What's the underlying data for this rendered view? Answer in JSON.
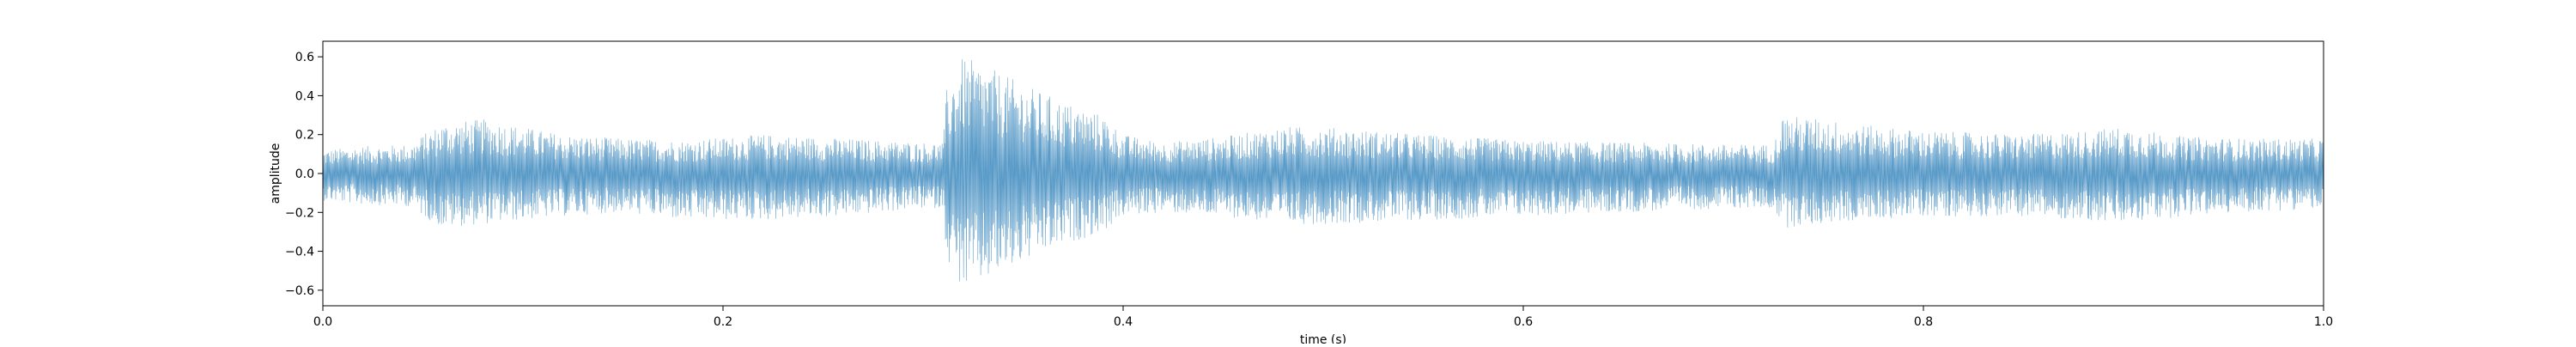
{
  "chart_data": {
    "type": "area",
    "title": "",
    "xlabel": "time (s)",
    "ylabel": "amplitude",
    "xlim": [
      0.0,
      1.0
    ],
    "ylim": [
      -0.68,
      0.68
    ],
    "xticks": [
      0.0,
      0.2,
      0.4,
      0.6,
      0.8,
      1.0
    ],
    "xtick_labels": [
      "0.0",
      "0.2",
      "0.4",
      "0.6",
      "0.8",
      "1.0"
    ],
    "yticks": [
      0.6,
      0.4,
      0.2,
      0.0,
      -0.2,
      -0.4,
      -0.6
    ],
    "ytick_labels": [
      "0.6",
      "0.4",
      "0.2",
      "0.0",
      "−0.2",
      "−0.4",
      "−0.6"
    ],
    "grid": false,
    "line_color": "#1f77b4",
    "series": [
      {
        "envelope": {
          "t": [
            0.0,
            0.02,
            0.045,
            0.05,
            0.06,
            0.08,
            0.1,
            0.12,
            0.15,
            0.18,
            0.22,
            0.26,
            0.3,
            0.31,
            0.312,
            0.32,
            0.33,
            0.35,
            0.37,
            0.39,
            0.4,
            0.42,
            0.45,
            0.48,
            0.5,
            0.55,
            0.6,
            0.65,
            0.7,
            0.725,
            0.73,
            0.75,
            0.77,
            0.8,
            0.85,
            0.88,
            0.9,
            0.93,
            0.96,
            1.0
          ],
          "pos": [
            0.12,
            0.14,
            0.15,
            0.2,
            0.26,
            0.28,
            0.24,
            0.2,
            0.18,
            0.17,
            0.2,
            0.18,
            0.16,
            0.16,
            0.45,
            0.6,
            0.56,
            0.46,
            0.37,
            0.3,
            0.2,
            0.16,
            0.19,
            0.24,
            0.24,
            0.2,
            0.17,
            0.16,
            0.15,
            0.15,
            0.3,
            0.28,
            0.25,
            0.22,
            0.2,
            0.22,
            0.24,
            0.19,
            0.18,
            0.18
          ],
          "neg": [
            -0.14,
            -0.16,
            -0.17,
            -0.22,
            -0.28,
            -0.26,
            -0.24,
            -0.22,
            -0.2,
            -0.24,
            -0.24,
            -0.22,
            -0.18,
            -0.18,
            -0.45,
            -0.6,
            -0.56,
            -0.46,
            -0.37,
            -0.3,
            -0.22,
            -0.2,
            -0.22,
            -0.26,
            -0.26,
            -0.24,
            -0.22,
            -0.2,
            -0.18,
            -0.18,
            -0.28,
            -0.26,
            -0.24,
            -0.22,
            -0.22,
            -0.24,
            -0.26,
            -0.22,
            -0.2,
            -0.18
          ]
        }
      }
    ]
  }
}
